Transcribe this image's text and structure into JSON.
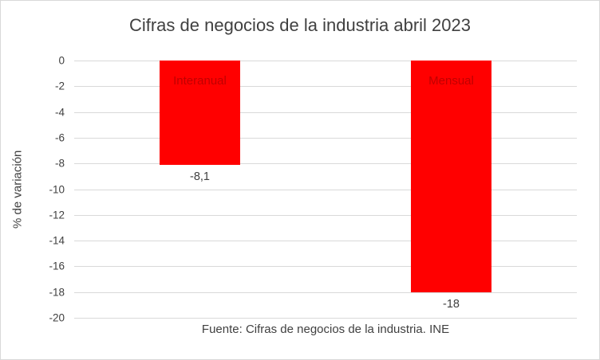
{
  "chart_data": {
    "type": "bar",
    "title": "Cifras de negocios de la industria abril 2023",
    "categories": [
      "Interanual",
      "Mensual"
    ],
    "values": [
      -8.1,
      -18
    ],
    "data_labels": [
      "-8,1",
      "-18"
    ],
    "xlabel": "",
    "ylabel": "% de variación",
    "ylim": [
      -20,
      0
    ],
    "ytick_step": 2,
    "ytick_labels": [
      "0",
      "-2",
      "-4",
      "-6",
      "-8",
      "-10",
      "-12",
      "-14",
      "-16",
      "-18",
      "-20"
    ],
    "grid": true,
    "legend_position": "none",
    "caption": "Fuente: Cifras de negocios de la industria. INE",
    "colors": {
      "bar_fill": "#FF0000",
      "category_label": "#C00000",
      "axis_text": "#404040",
      "gridline": "#d9d9d9",
      "border": "#d9d9d9"
    }
  }
}
